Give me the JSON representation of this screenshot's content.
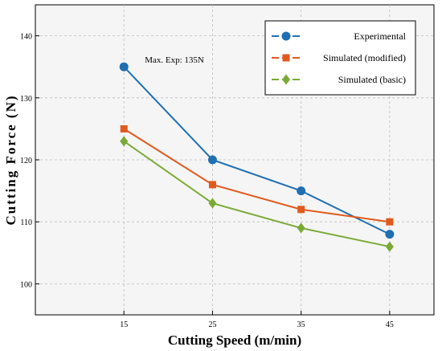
{
  "chart_data": {
    "type": "line",
    "title": "",
    "xlabel": "Cutting Speed (m/min)",
    "ylabel": "Cutting Force (N)",
    "x": [
      15,
      25,
      35,
      45
    ],
    "xticks": [
      "15",
      "25",
      "35",
      "45"
    ],
    "xlim": [
      5,
      50
    ],
    "ylim": [
      95,
      145
    ],
    "yticks": [
      "100",
      "110",
      "120",
      "130",
      "140"
    ],
    "grid": true,
    "legend_position": "top-right",
    "series": [
      {
        "name": "Experimental",
        "values": [
          135,
          120,
          115,
          108
        ],
        "color": "#1f6fb2",
        "marker": "circle"
      },
      {
        "name": "Simulated (modified)",
        "values": [
          125,
          116,
          112,
          110
        ],
        "color": "#e05a1e",
        "marker": "square"
      },
      {
        "name": "Simulated (basic)",
        "values": [
          123,
          113,
          109,
          106
        ],
        "color": "#7aaa35",
        "marker": "diamond"
      }
    ],
    "annotations": [
      {
        "text": "Max. Exp: 135N",
        "x": 15,
        "y": 135
      }
    ]
  }
}
